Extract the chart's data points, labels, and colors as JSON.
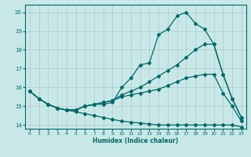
{
  "xlabel": "Humidex (Indice chaleur)",
  "background_color": "#c8e8e8",
  "grid_color": "#b0c8c8",
  "line_color": "#006868",
  "xlim": [
    -0.5,
    23.5
  ],
  "ylim": [
    13.8,
    20.4
  ],
  "xticks": [
    0,
    1,
    2,
    3,
    4,
    5,
    6,
    7,
    8,
    9,
    10,
    11,
    12,
    13,
    14,
    15,
    16,
    17,
    18,
    19,
    20,
    21,
    22,
    23
  ],
  "yticks": [
    14,
    15,
    16,
    17,
    18,
    19,
    20
  ],
  "line1_x": [
    0,
    1,
    2,
    3,
    4,
    5,
    6,
    7,
    8,
    9,
    10,
    11,
    12,
    13,
    14,
    15,
    16,
    17,
    18,
    19,
    20,
    21,
    22,
    23
  ],
  "line1_y": [
    15.8,
    15.4,
    15.1,
    14.9,
    14.8,
    14.8,
    15.0,
    15.1,
    15.1,
    15.2,
    16.0,
    16.5,
    17.2,
    17.3,
    18.8,
    19.1,
    19.8,
    20.0,
    19.4,
    19.1,
    18.3,
    16.7,
    15.4,
    14.4
  ],
  "line2_x": [
    0,
    1,
    2,
    3,
    4,
    5,
    6,
    7,
    8,
    9,
    10,
    11,
    12,
    13,
    14,
    15,
    16,
    17,
    18,
    19,
    20,
    21,
    22,
    23
  ],
  "line2_y": [
    15.8,
    15.4,
    15.1,
    14.9,
    14.8,
    14.8,
    15.0,
    15.1,
    15.2,
    15.3,
    15.6,
    15.8,
    16.0,
    16.3,
    16.6,
    16.9,
    17.2,
    17.6,
    18.0,
    18.3,
    18.3,
    16.7,
    15.4,
    14.4
  ],
  "line3_x": [
    0,
    1,
    2,
    3,
    4,
    5,
    6,
    7,
    8,
    9,
    10,
    11,
    12,
    13,
    14,
    15,
    16,
    17,
    18,
    19,
    20,
    21,
    22,
    23
  ],
  "line3_y": [
    15.8,
    15.4,
    15.1,
    14.9,
    14.8,
    14.8,
    15.0,
    15.1,
    15.2,
    15.3,
    15.5,
    15.6,
    15.7,
    15.8,
    15.9,
    16.1,
    16.3,
    16.5,
    16.6,
    16.7,
    16.7,
    15.7,
    15.0,
    14.2
  ],
  "line4_x": [
    0,
    1,
    2,
    3,
    4,
    5,
    6,
    7,
    8,
    9,
    10,
    11,
    12,
    13,
    14,
    15,
    16,
    17,
    18,
    19,
    20,
    21,
    22,
    23
  ],
  "line4_y": [
    15.8,
    15.4,
    15.1,
    14.9,
    14.8,
    14.7,
    14.6,
    14.5,
    14.4,
    14.3,
    14.2,
    14.15,
    14.1,
    14.05,
    14.0,
    14.0,
    14.0,
    14.0,
    14.0,
    14.0,
    14.0,
    14.0,
    14.0,
    13.9
  ]
}
